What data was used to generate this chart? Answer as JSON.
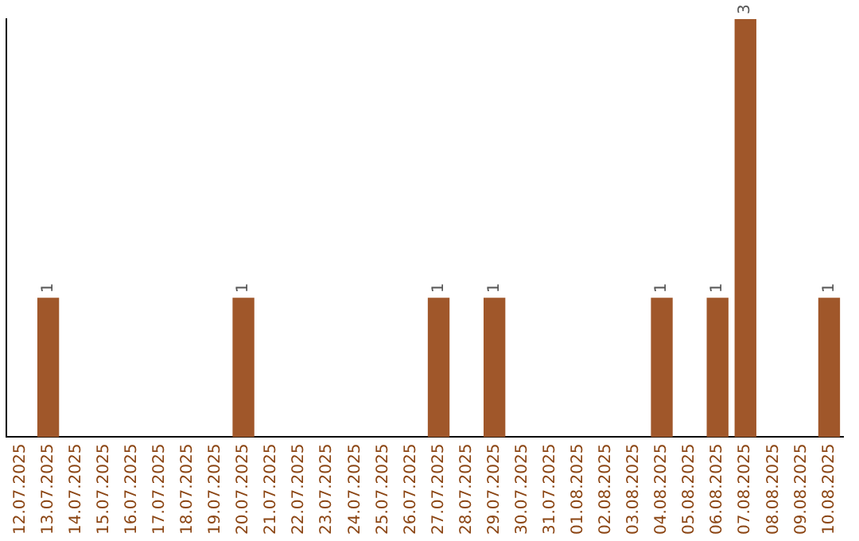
{
  "chart_data": {
    "type": "bar",
    "categories": [
      "12.07.2025",
      "13.07.2025",
      "14.07.2025",
      "15.07.2025",
      "16.07.2025",
      "17.07.2025",
      "18.07.2025",
      "19.07.2025",
      "20.07.2025",
      "21.07.2025",
      "22.07.2025",
      "23.07.2025",
      "24.07.2025",
      "25.07.2025",
      "26.07.2025",
      "27.07.2025",
      "28.07.2025",
      "29.07.2025",
      "30.07.2025",
      "31.07.2025",
      "01.08.2025",
      "02.08.2025",
      "03.08.2025",
      "04.08.2025",
      "05.08.2025",
      "06.08.2025",
      "07.08.2025",
      "08.08.2025",
      "09.08.2025",
      "10.08.2025"
    ],
    "values": [
      0,
      1,
      0,
      0,
      0,
      0,
      0,
      0,
      1,
      0,
      0,
      0,
      0,
      0,
      0,
      1,
      0,
      1,
      0,
      0,
      0,
      0,
      0,
      1,
      0,
      1,
      3,
      0,
      0,
      1
    ],
    "value_labels": [
      null,
      "1",
      null,
      null,
      null,
      null,
      null,
      null,
      "1",
      null,
      null,
      null,
      null,
      null,
      null,
      "1",
      null,
      "1",
      null,
      null,
      null,
      null,
      null,
      "1",
      null,
      "1",
      "3",
      null,
      null,
      "1"
    ],
    "color": "#a0572a",
    "grid": false,
    "legend": false
  }
}
